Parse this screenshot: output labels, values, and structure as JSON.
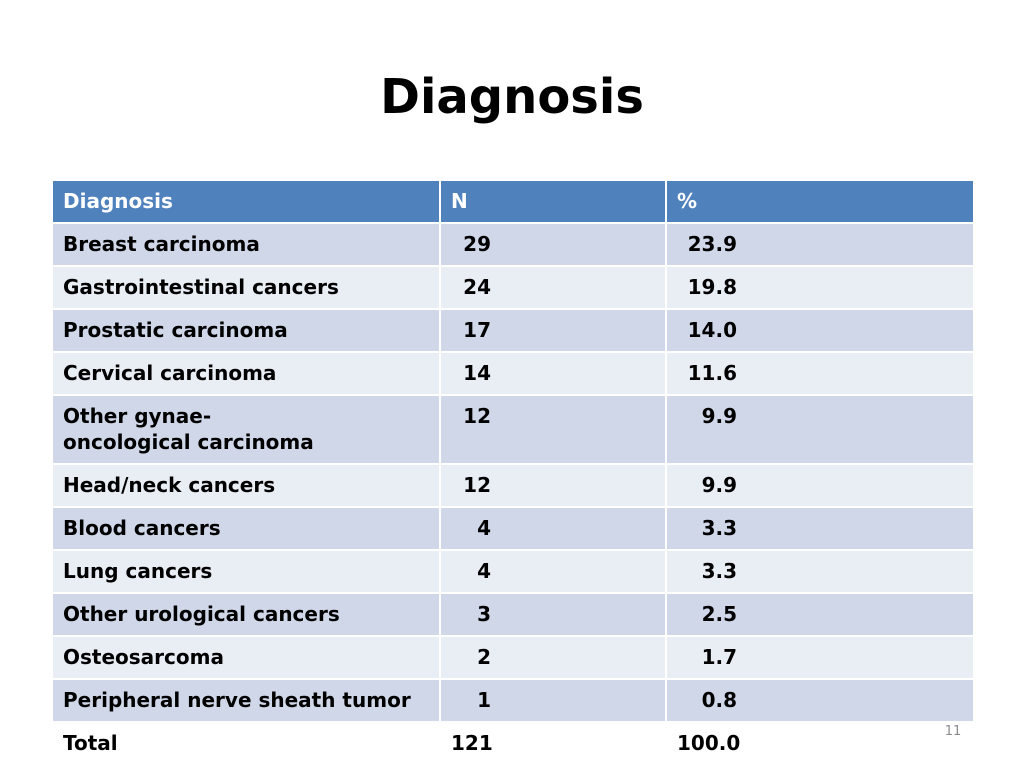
{
  "slide": {
    "title": "Diagnosis",
    "page_number": "11"
  },
  "table": {
    "headers": [
      "Diagnosis",
      "N",
      "%"
    ],
    "rows": [
      {
        "diagnosis": "Breast carcinoma",
        "n": "29",
        "pct": "23.9"
      },
      {
        "diagnosis": "Gastrointestinal cancers",
        "n": "24",
        "pct": "19.8"
      },
      {
        "diagnosis": "Prostatic carcinoma",
        "n": "17",
        "pct": "14.0"
      },
      {
        "diagnosis": "Cervical carcinoma",
        "n": "14",
        "pct": "11.6"
      },
      {
        "diagnosis": "Other gynae-oncological carcinoma",
        "n": "12",
        "pct": "9.9"
      },
      {
        "diagnosis": "Head/neck cancers",
        "n": "12",
        "pct": "9.9"
      },
      {
        "diagnosis": "Blood cancers",
        "n": "4",
        "pct": "3.3"
      },
      {
        "diagnosis": "Lung cancers",
        "n": "4",
        "pct": "3.3"
      },
      {
        "diagnosis": "Other urological cancers",
        "n": "3",
        "pct": "2.5"
      },
      {
        "diagnosis": "Osteosarcoma",
        "n": "2",
        "pct": "1.7"
      },
      {
        "diagnosis": "Peripheral nerve sheath tumor",
        "n": "1",
        "pct": "0.8"
      }
    ],
    "total": {
      "label": "Total",
      "n": "121",
      "pct": "100.0"
    }
  },
  "colors": {
    "header_bg": "#4f81bd",
    "row_dark": "#cfd7e8",
    "row_light": "#e9edf4"
  }
}
